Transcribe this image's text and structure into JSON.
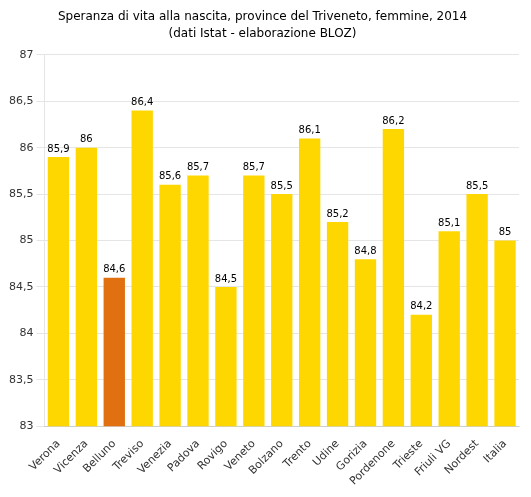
{
  "chart_data": {
    "type": "bar",
    "title": "Speranza di vita alla nascita, province del Triveneto, femmine, 2014",
    "subtitle": "(dati Istat - elaborazione BLOZ)",
    "categories": [
      "Verona",
      "Vicenza",
      "Belluno",
      "Treviso",
      "Venezia",
      "Padova",
      "Rovigo",
      "Veneto",
      "Bolzano",
      "Trento",
      "Udine",
      "Gorizia",
      "Pordenone",
      "Trieste",
      "Friuli VG",
      "Nordest",
      "Italia"
    ],
    "values": [
      85.9,
      86.0,
      84.6,
      86.4,
      85.6,
      85.7,
      84.5,
      85.7,
      85.5,
      86.1,
      85.2,
      84.8,
      86.2,
      84.2,
      85.1,
      85.5,
      85.0
    ],
    "value_labels": [
      "85,9",
      "86",
      "84,6",
      "86,4",
      "85,6",
      "85,7",
      "84,5",
      "85,7",
      "85,5",
      "86,1",
      "85,2",
      "84,8",
      "86,2",
      "84,2",
      "85,1",
      "85,5",
      "85"
    ],
    "colors": [
      "#FFD700",
      "#FFD700",
      "#E07010",
      "#FFD700",
      "#FFD700",
      "#FFD700",
      "#FFD700",
      "#FFD700",
      "#FFD700",
      "#FFD700",
      "#FFD700",
      "#FFD700",
      "#FFD700",
      "#FFD700",
      "#FFD700",
      "#FFD700",
      "#FFD700"
    ],
    "ylim": [
      83,
      87
    ],
    "yticks": [
      83,
      {
        "value": 83.5,
        "label": "83,5"
      },
      84,
      {
        "value": 84.5,
        "label": "84,5"
      },
      85,
      {
        "value": 85.5,
        "label": "85,5"
      },
      86,
      {
        "value": 86.5,
        "label": "86,5"
      },
      87
    ],
    "grid": true,
    "data_labels": true
  }
}
